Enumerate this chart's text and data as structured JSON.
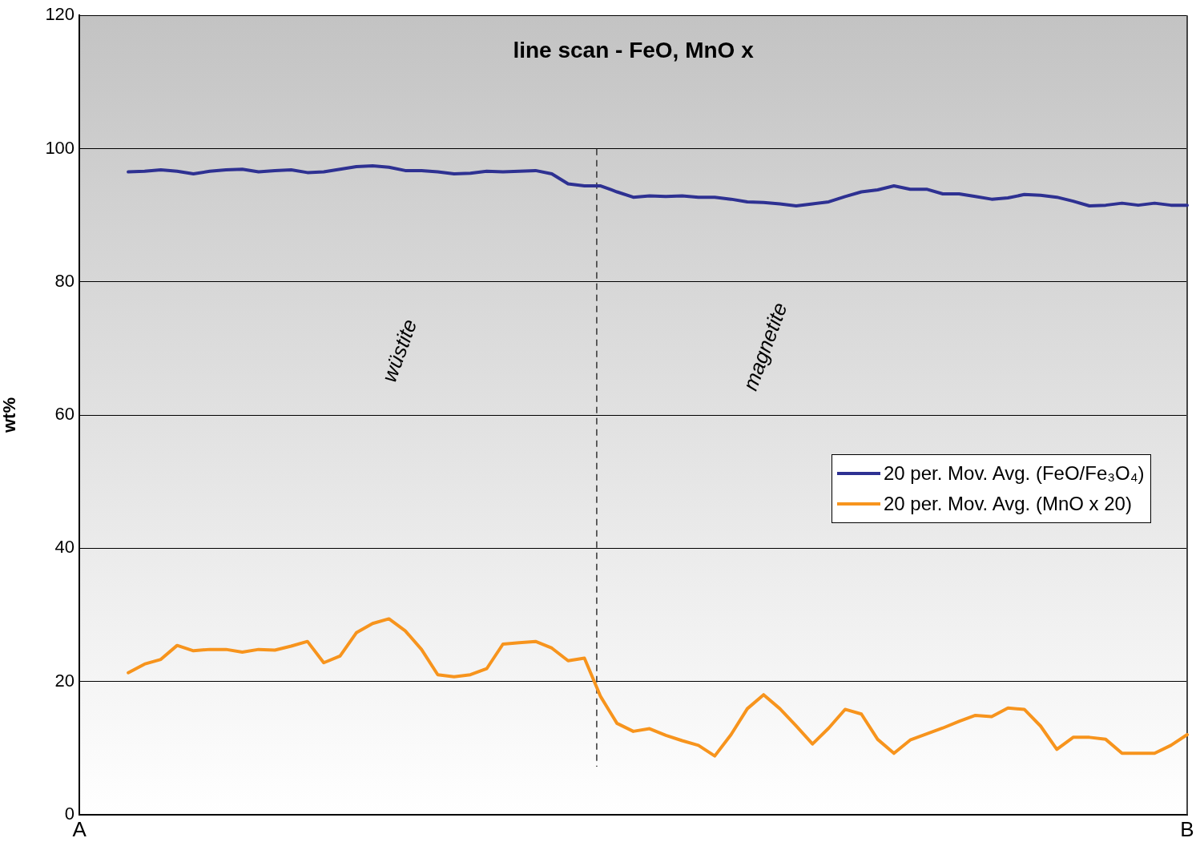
{
  "chart_data": {
    "type": "line",
    "title": "line scan - FeO, MnO x",
    "ylabel": "wt%",
    "categories": [
      "A",
      null,
      null,
      null,
      null,
      null,
      null,
      null,
      null,
      null,
      null,
      null,
      null,
      null,
      null,
      null,
      null,
      null,
      null,
      null,
      null,
      null,
      null,
      null,
      null,
      null,
      null,
      null,
      null,
      null,
      null,
      null,
      null,
      null,
      null,
      null,
      null,
      null,
      null,
      null,
      null,
      null,
      null,
      null,
      null,
      null,
      null,
      null,
      null,
      null,
      null,
      null,
      null,
      null,
      null,
      null,
      null,
      null,
      null,
      null,
      null,
      null,
      null,
      null,
      null,
      null,
      null,
      null,
      "B"
    ],
    "ylim": [
      0,
      120
    ],
    "yticks": [
      0,
      20,
      40,
      60,
      80,
      100,
      120
    ],
    "grid": "y",
    "legend": "right",
    "marker": "none",
    "line_style": "solid",
    "annotations": [
      "wüstite",
      "magnetite"
    ],
    "series": [
      {
        "name": "20 per. Mov. Avg. (FeO/Fe₃O₄)",
        "color": "#2e3192",
        "values": [
          null,
          null,
          null,
          96.5,
          96.6,
          96.8,
          96.6,
          96.2,
          96.6,
          96.8,
          96.9,
          96.5,
          96.7,
          96.8,
          96.4,
          96.5,
          96.9,
          97.3,
          97.4,
          97.2,
          96.7,
          96.7,
          96.5,
          96.2,
          96.3,
          96.6,
          96.5,
          96.6,
          96.7,
          96.2,
          94.7,
          94.4,
          94.4,
          93.5,
          92.7,
          92.9,
          92.8,
          92.9,
          92.7,
          92.7,
          92.4,
          92.0,
          91.9,
          91.7,
          91.4,
          91.7,
          92.0,
          92.8,
          93.5,
          93.8,
          94.4,
          93.9,
          93.9,
          93.2,
          93.2,
          92.8,
          92.4,
          92.6,
          93.1,
          93.0,
          92.7,
          92.1,
          91.4,
          91.5,
          91.8,
          91.5,
          91.8,
          91.5,
          91.5
        ]
      },
      {
        "name": "20 per. Mov. Avg. (MnO x 20)",
        "color": "#f7941d",
        "values": [
          null,
          null,
          null,
          21.3,
          22.6,
          23.3,
          25.4,
          24.6,
          24.8,
          24.8,
          24.4,
          24.8,
          24.7,
          25.3,
          26.0,
          22.8,
          23.8,
          27.3,
          28.7,
          29.4,
          27.6,
          24.8,
          21.0,
          20.7,
          21.0,
          21.9,
          25.6,
          25.8,
          26.0,
          25.0,
          23.1,
          23.5,
          17.7,
          13.7,
          12.5,
          12.9,
          11.9,
          11.1,
          10.4,
          8.8,
          12.0,
          15.9,
          18.0,
          15.9,
          13.3,
          10.6,
          13.0,
          15.8,
          15.1,
          11.3,
          9.2,
          11.2,
          12.1,
          13.0,
          14.0,
          14.9,
          14.7,
          16.0,
          15.8,
          13.3,
          9.8,
          11.6,
          11.6,
          11.3,
          9.2,
          9.2,
          9.2,
          10.4,
          12.0
        ]
      }
    ]
  }
}
